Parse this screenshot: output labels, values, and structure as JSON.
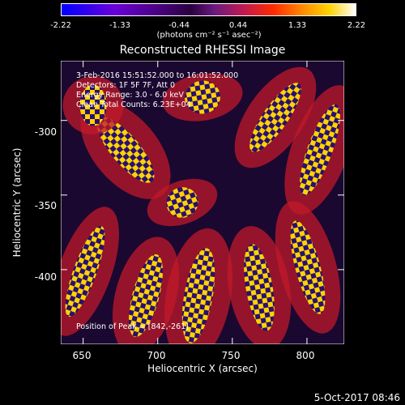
{
  "colorbar": {
    "ticks": [
      "-2.22",
      "-1.33",
      "-0.44",
      "0.44",
      "1.33",
      "2.22"
    ],
    "units_label": "(photons cm⁻² s⁻¹ asec⁻²)"
  },
  "chart_data": {
    "type": "heatmap",
    "title": "Reconstructed RHESSI Image",
    "xlabel": "Heliocentric X (arcsec)",
    "ylabel": "Heliocentric Y (arcsec)",
    "xlim": [
      635,
      825
    ],
    "ylim": [
      -450,
      -260
    ],
    "x_ticks": [
      "650",
      "700",
      "750",
      "800"
    ],
    "y_ticks": [
      "-300",
      "-350",
      "-400"
    ],
    "color_range": [
      -2.22,
      2.22
    ],
    "colormap_colors": [
      "#0000ff",
      "#4a0080",
      "#ff2a00",
      "#ffd200",
      "#ffffff"
    ],
    "annotations": [
      "3-Feb-2016 15:51:52.000 to 16:01:52.000",
      "Detectors: 1F 5F 7F, Att 0",
      "Energy Range: 3.0 - 6.0 keV",
      "Clean    Total Counts: 6.23E+04"
    ],
    "peak_label": "Position of Peak = [842,-261]"
  },
  "timestamp": "5-Oct-2017 08:46"
}
